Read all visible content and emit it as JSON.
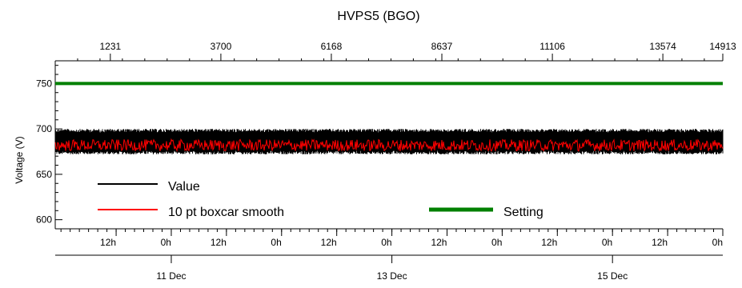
{
  "chart_data": {
    "type": "line",
    "title": "HVPS5 (BGO)",
    "ylabel": "Voltage (V)",
    "ylim": [
      590,
      775
    ],
    "y_ticks": [
      600,
      650,
      700,
      750
    ],
    "top_axis": {
      "range": [
        0,
        14913
      ],
      "ticks": [
        "1231",
        "3700",
        "6168",
        "8637",
        "11106",
        "13574",
        "14913"
      ],
      "tick_values": [
        1231,
        3700,
        6168,
        8637,
        11106,
        13574,
        14913
      ]
    },
    "bottom_axis": {
      "range_hours": [
        0,
        145.25
      ],
      "hour_tick_labels": [
        "12h",
        "0h",
        "12h",
        "0h",
        "12h",
        "0h",
        "12h",
        "0h",
        "12h",
        "0h",
        "12h",
        "0h"
      ],
      "hour_tick_values": [
        13.25,
        25.25,
        37.25,
        49.25,
        61.25,
        73.25,
        85.25,
        97.25,
        109.25,
        121.25,
        133.25,
        145.25
      ],
      "date_labels": [
        "11 Dec",
        "13 Dec",
        "15 Dec"
      ],
      "date_values": [
        25.25,
        73.25,
        121.25
      ]
    },
    "series": [
      {
        "name": "Value",
        "color": "#000000",
        "mean": 685,
        "min": 672,
        "max": 700
      },
      {
        "name": "10 pt boxcar smooth",
        "color": "#ff0000",
        "mean": 682,
        "min": 674,
        "max": 690
      },
      {
        "name": "Setting",
        "color": "#008000",
        "value": 750
      }
    ],
    "legend": {
      "placement": "bottom-left"
    }
  }
}
